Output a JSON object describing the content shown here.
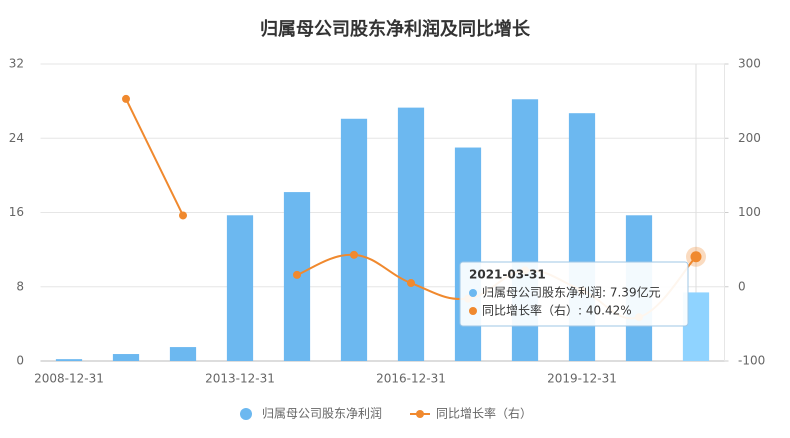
{
  "chart_data": {
    "type": "bar-line",
    "title": "归属母公司股东净利润及同比增长",
    "categories": [
      "2008-12-31",
      null,
      null,
      "2013-12-31",
      null,
      null,
      "2016-12-31",
      null,
      null,
      "2019-12-31",
      null,
      "2021-03-31"
    ],
    "series": [
      {
        "name": "归属母公司股东净利润",
        "type": "bar",
        "color": "#6cb8f0",
        "values": [
          0.2,
          0.75,
          1.5,
          15.7,
          18.2,
          26.1,
          27.3,
          23.0,
          28.2,
          26.7,
          15.7,
          7.39
        ]
      },
      {
        "name": "同比增长率（右）",
        "type": "line",
        "axis": "y2",
        "color": "#f0892e",
        "values": [
          null,
          253,
          96,
          null,
          16,
          43,
          5,
          -16,
          22,
          -5,
          -41,
          40.42
        ]
      }
    ],
    "ylim": [
      0,
      32
    ],
    "yticks": [
      0,
      8,
      16,
      24,
      32
    ],
    "y2lim": [
      -100,
      300
    ],
    "y2ticks": [
      -100,
      0,
      100,
      200,
      300
    ],
    "grid": true,
    "legend": "bottom",
    "tooltip": {
      "title": "2021-03-31",
      "lines": [
        "归属母公司股东净利润: 7.39亿元",
        "同比增长率（右）: 40.42%"
      ]
    }
  }
}
